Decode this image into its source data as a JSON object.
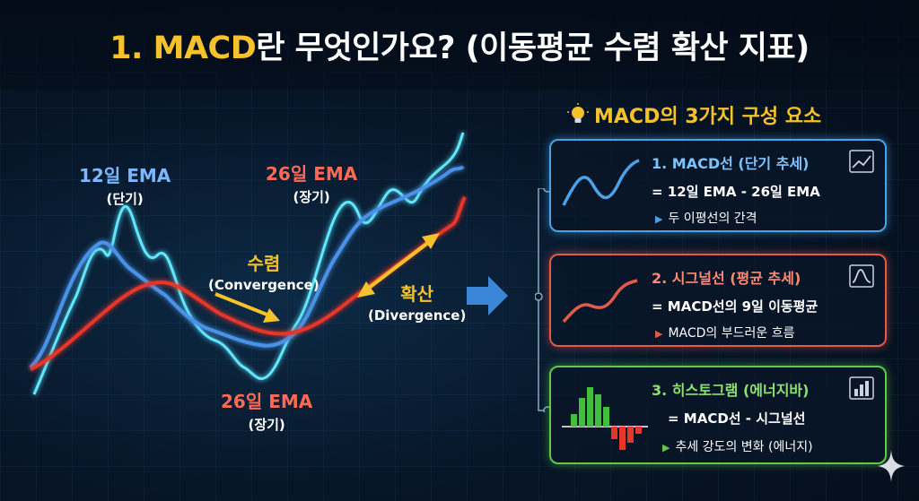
{
  "title": {
    "highlight": "1. MACD",
    "rest": "란 무엇인가요? (이동평균 수렴 확산 지표)"
  },
  "chart": {
    "ema12_label": "12일 EMA",
    "ema12_sub": "(단기)",
    "ema26_top_label": "26일 EMA",
    "ema26_top_sub": "(장기)",
    "ema26_bottom_label": "26일 EMA",
    "ema26_bottom_sub": "(장기)",
    "convergence_label": "수렴",
    "convergence_sub": "(Convergence)",
    "divergence_label": "확산",
    "divergence_sub": "(Divergence)"
  },
  "components": {
    "header": "MACD의 3가지 구성 요소",
    "header_icon": "lightbulb-icon",
    "items": [
      {
        "title": "1. MACD선 (단기 추세)",
        "formula": "= 12일 EMA - 26일 EMA",
        "note": "두 이평선의 간격",
        "icon": "trend-up-icon",
        "color": "#4aa3e8"
      },
      {
        "title": "2. 시그널선 (평균 추세)",
        "formula": "= MACD선의 9일 이동평균",
        "note": "MACD의 부드러운 흐름",
        "icon": "bell-curve-icon",
        "color": "#e65a45"
      },
      {
        "title": "3. 히스토그램 (에너지바)",
        "formula": "= MACD선 - 시그널선",
        "note": "추세 강도의 변화 (에너지)",
        "icon": "bar-chart-icon",
        "color": "#5fc94a"
      }
    ]
  },
  "colors": {
    "accent": "#f5c22b",
    "macd_line": "#4aa3e8",
    "fast_line": "#5fe8ff",
    "slow_line": "#e8352a"
  }
}
